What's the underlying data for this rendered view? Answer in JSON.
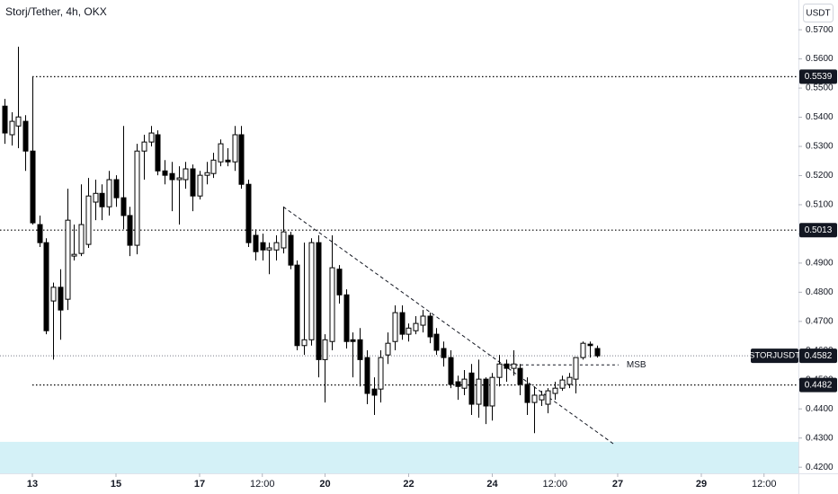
{
  "chart_data": {
    "type": "candlestick",
    "title": "Storj/Tether, 4h, OKX",
    "currency": "USDT",
    "symbol": "STORJUSDT",
    "last": 0.4582,
    "up_color": "#ffffff",
    "down_color": "#000000",
    "grid": false,
    "xlim": [
      12.226,
      31.323
    ],
    "ylim": [
      0.4179,
      0.5802
    ],
    "xticks": [
      13,
      15,
      17,
      {
        "value": 18.5,
        "label": "12:00"
      },
      20,
      22,
      24,
      {
        "value": 25.5,
        "label": "12:00"
      },
      27,
      29,
      {
        "value": 30.5,
        "label": "12:00"
      }
    ],
    "yticks": [
      {
        "value": 0.57,
        "label": "0.5700"
      },
      {
        "value": 0.56,
        "label": "0.5600"
      },
      {
        "value": 0.55,
        "label": "0.5500"
      },
      {
        "value": 0.54,
        "label": "0.5400"
      },
      {
        "value": 0.53,
        "label": "0.5300"
      },
      {
        "value": 0.52,
        "label": "0.5200"
      },
      {
        "value": 0.51,
        "label": "0.5100"
      },
      {
        "value": 0.5,
        "label": "0.5000"
      },
      {
        "value": 0.49,
        "label": "0.4900"
      },
      {
        "value": 0.48,
        "label": "0.4800"
      },
      {
        "value": 0.47,
        "label": "0.4700"
      },
      {
        "value": 0.46,
        "label": "0.4600"
      },
      {
        "value": 0.45,
        "label": "0.4500"
      },
      {
        "value": 0.44,
        "label": "0.4400"
      },
      {
        "value": 0.43,
        "label": "0.4300"
      },
      {
        "value": 0.42,
        "label": "0.4200"
      }
    ],
    "x": [
      12.3333,
      12.5,
      12.6667,
      12.8333,
      13,
      13.1667,
      13.3333,
      13.5,
      13.6667,
      13.8333,
      14,
      14.1667,
      14.3333,
      14.5,
      14.6667,
      14.8333,
      15,
      15.1667,
      15.3333,
      15.5,
      15.6667,
      15.8333,
      16,
      16.1667,
      16.3333,
      16.5,
      16.6667,
      16.8333,
      17,
      17.1667,
      17.3333,
      17.5,
      17.6667,
      17.8333,
      18,
      18.1667,
      18.3333,
      18.5,
      18.6667,
      18.8333,
      19,
      19.1667,
      19.3333,
      19.5,
      19.6667,
      19.8333,
      20,
      20.1667,
      20.3333,
      20.5,
      20.6667,
      20.8333,
      21,
      21.1667,
      21.3333,
      21.5,
      21.6667,
      21.8333,
      22,
      22.1667,
      22.3333,
      22.5,
      22.6667,
      22.8333,
      23,
      23.1667,
      23.3333,
      23.5,
      23.6667,
      23.8333,
      24,
      24.1667,
      24.3333,
      24.5,
      24.6667,
      24.8333,
      25,
      25.1667,
      25.3333,
      25.5,
      25.6667,
      25.8333,
      26,
      26.1667,
      26.3333,
      26.5
    ],
    "open": [
      0.5438,
      0.534,
      0.537,
      0.5386,
      0.5284,
      0.5032,
      0.497,
      0.477,
      0.4817,
      0.4776,
      0.4924,
      0.4933,
      0.4964,
      0.5109,
      0.5139,
      0.5093,
      0.5186,
      0.5124,
      0.5063,
      0.4961,
      0.5284,
      0.5315,
      0.534,
      0.5216,
      0.5207,
      0.5186,
      0.5186,
      0.5223,
      0.513,
      0.5201,
      0.5207,
      0.5247,
      0.5253,
      0.5247,
      0.534,
      0.517,
      0.4995,
      0.497,
      0.4945,
      0.4945,
      0.4952,
      0.4995,
      0.4893,
      0.4617,
      0.4637,
      0.497,
      0.4569,
      0.4631,
      0.4879,
      0.4791,
      0.4637,
      0.4637,
      0.4576,
      0.4468,
      0.4468,
      0.4585,
      0.4631,
      0.473,
      0.4656,
      0.4668,
      0.4687,
      0.4718,
      0.4656,
      0.4607,
      0.4576,
      0.4493,
      0.4471,
      0.4523,
      0.4416,
      0.4502,
      0.441,
      0.4508,
      0.4554,
      0.4539,
      0.4539,
      0.4484,
      0.4422,
      0.4431,
      0.4416,
      0.4453,
      0.4471,
      0.4484,
      0.4502,
      0.4576,
      0.4622,
      0.4607
    ],
    "high": [
      0.5463,
      0.5417,
      0.5642,
      0.5407,
      0.554,
      0.5063,
      0.4985,
      0.4833,
      0.4879,
      0.5155,
      0.5032,
      0.517,
      0.5192,
      0.5186,
      0.517,
      0.5216,
      0.5201,
      0.537,
      0.5093,
      0.5309,
      0.534,
      0.537,
      0.5355,
      0.5253,
      0.5247,
      0.5232,
      0.5247,
      0.5238,
      0.5216,
      0.5247,
      0.5278,
      0.5324,
      0.5294,
      0.537,
      0.537,
      0.5186,
      0.5016,
      0.5001,
      0.497,
      0.4995,
      0.5093,
      0.5007,
      0.4909,
      0.497,
      0.4985,
      0.4995,
      0.4656,
      0.4995,
      0.4893,
      0.481,
      0.4662,
      0.4677,
      0.4601,
      0.4508,
      0.4601,
      0.4662,
      0.4755,
      0.4755,
      0.4693,
      0.4718,
      0.4739,
      0.473,
      0.4677,
      0.4631,
      0.4601,
      0.4514,
      0.4533,
      0.4554,
      0.4569,
      0.4508,
      0.4523,
      0.4585,
      0.4569,
      0.4601,
      0.4554,
      0.4508,
      0.4477,
      0.4462,
      0.4471,
      0.4493,
      0.4514,
      0.4523,
      0.4576,
      0.4631,
      0.4631,
      0.4617
    ],
    "low": [
      0.5309,
      0.5303,
      0.5294,
      0.5216,
      0.5032,
      0.4955,
      0.4656,
      0.4569,
      0.4637,
      0.4739,
      0.4909,
      0.4924,
      0.4952,
      0.5047,
      0.5047,
      0.5063,
      0.5093,
      0.5016,
      0.4924,
      0.493,
      0.5186,
      0.53,
      0.5201,
      0.517,
      0.5078,
      0.5032,
      0.5155,
      0.5078,
      0.5118,
      0.517,
      0.5192,
      0.5232,
      0.5232,
      0.5216,
      0.5155,
      0.4955,
      0.4909,
      0.4909,
      0.4862,
      0.4909,
      0.4933,
      0.4879,
      0.4601,
      0.4585,
      0.4617,
      0.4508,
      0.4422,
      0.4601,
      0.4761,
      0.4607,
      0.4508,
      0.4477,
      0.4416,
      0.4379,
      0.4422,
      0.4554,
      0.4601,
      0.4637,
      0.4631,
      0.4656,
      0.4662,
      0.4625,
      0.4585,
      0.4545,
      0.4471,
      0.4431,
      0.4447,
      0.4379,
      0.437,
      0.4348,
      0.436,
      0.4477,
      0.4493,
      0.4514,
      0.4447,
      0.4379,
      0.4317,
      0.441,
      0.4385,
      0.4431,
      0.4462,
      0.4471,
      0.4453,
      0.4569,
      0.4576,
      0.4576
    ],
    "close": [
      0.5346,
      0.5386,
      0.5401,
      0.5284,
      0.5038,
      0.497,
      0.4668,
      0.4817,
      0.4739,
      0.5047,
      0.493,
      0.5032,
      0.513,
      0.5139,
      0.5093,
      0.5186,
      0.5124,
      0.5063,
      0.4961,
      0.5284,
      0.5315,
      0.5346,
      0.5216,
      0.5201,
      0.5186,
      0.5192,
      0.5223,
      0.513,
      0.5201,
      0.521,
      0.5253,
      0.5309,
      0.5247,
      0.534,
      0.517,
      0.497,
      0.4939,
      0.4945,
      0.4952,
      0.497,
      0.5007,
      0.4893,
      0.4617,
      0.4637,
      0.497,
      0.4569,
      0.4637,
      0.4884,
      0.4791,
      0.4631,
      0.4631,
      0.4569,
      0.4453,
      0.4447,
      0.4576,
      0.4625,
      0.473,
      0.4656,
      0.4677,
      0.4693,
      0.4718,
      0.4647,
      0.4601,
      0.4576,
      0.4484,
      0.4477,
      0.4502,
      0.4416,
      0.4502,
      0.441,
      0.4508,
      0.4554,
      0.4539,
      0.4554,
      0.4484,
      0.4422,
      0.4447,
      0.4447,
      0.4462,
      0.4471,
      0.4499,
      0.4508,
      0.4576,
      0.4625,
      0.4617,
      0.4582
    ],
    "levels": [
      {
        "value": 0.5539,
        "from": 13
      },
      {
        "value": 0.5013
      },
      {
        "value": 0.4482,
        "from": 13
      }
    ],
    "zone": [
      0.4179,
      0.4287
    ],
    "trendline": [
      [
        19,
        0.5093
      ],
      [
        26.9,
        0.428
      ]
    ],
    "msb": {
      "label": "MSB",
      "value": 0.4551,
      "from": 24.16,
      "to": 27.02
    }
  }
}
